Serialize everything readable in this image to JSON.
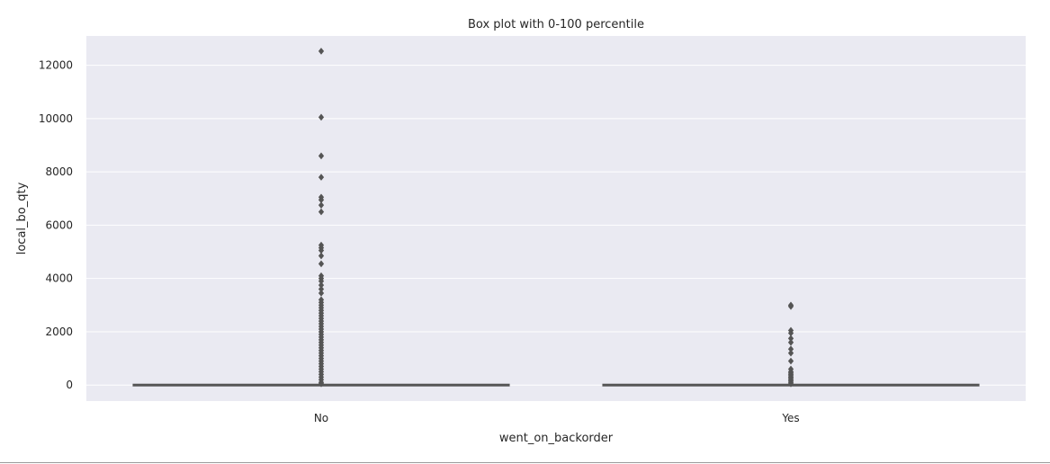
{
  "chart_data": {
    "type": "box",
    "title": "Box plot with 0-100 percentile",
    "xlabel": "went_on_backorder",
    "ylabel": "local_bo_qty",
    "categories": [
      "No",
      "Yes"
    ],
    "ylim": [
      -600,
      13100
    ],
    "yticks": [
      0,
      2000,
      4000,
      6000,
      8000,
      10000,
      12000
    ],
    "yticklabels": [
      "0",
      "2000",
      "4000",
      "6000",
      "8000",
      "10000",
      "12000"
    ],
    "grid": true,
    "colors": {
      "plot_background": "#eaeaf2",
      "grid": "#ffffff",
      "box": "#555555"
    },
    "boxes": [
      {
        "category": "No",
        "min": 0,
        "q1": 0,
        "median": 0,
        "q3": 0,
        "max": 0,
        "outliers": [
          12530,
          10050,
          8600,
          7800,
          7050,
          6950,
          6750,
          6500,
          5250,
          5150,
          5050,
          4850,
          4550,
          4100,
          4000,
          3900,
          3750,
          3600,
          3450,
          3200,
          3100,
          3000,
          2900,
          2800,
          2700,
          2600,
          2500,
          2400,
          2300,
          2200,
          2100,
          2000,
          1900,
          1800,
          1700,
          1600,
          1500,
          1400,
          1300,
          1200,
          1100,
          1000,
          900,
          800,
          700,
          600,
          500,
          400,
          300,
          200,
          100,
          50
        ]
      },
      {
        "category": "Yes",
        "min": 0,
        "q1": 0,
        "median": 0,
        "q3": 0,
        "max": 0,
        "outliers": [
          3000,
          2950,
          2050,
          1950,
          1750,
          1600,
          1350,
          1200,
          900,
          600,
          500,
          450,
          400,
          350,
          300,
          250,
          200,
          150,
          100,
          50
        ]
      }
    ]
  }
}
